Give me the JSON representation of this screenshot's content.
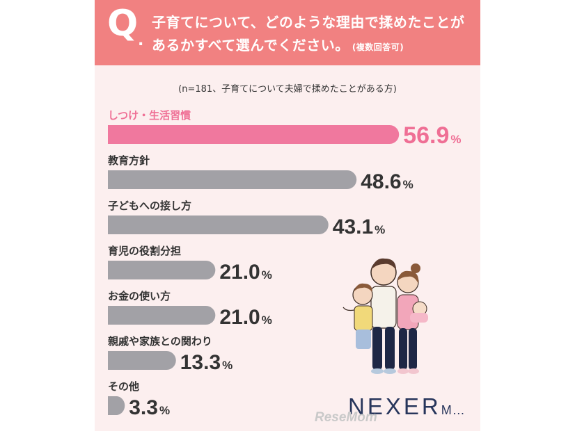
{
  "header": {
    "q_mark": "Q",
    "q_dot": ".",
    "line1": "子育てについて、どのような理由で揉めたことが",
    "line2": "あるかすべて選んでください。",
    "note": "(複数回答可)"
  },
  "subtitle": "(n=181、子育てについて夫婦で揉めたことがある方)",
  "chart_data": {
    "type": "bar",
    "orientation": "horizontal",
    "title": "子育てについて、どのような理由で揉めたことがあるかすべて選んでください。(複数回答可)",
    "subtitle": "(n=181、子育てについて夫婦で揉めたことがある方)",
    "categories": [
      "しつけ・生活習慣",
      "教育方針",
      "子どもへの接し方",
      "育児の役割分担",
      "お金の使い方",
      "親戚や家族との関わり",
      "その他"
    ],
    "values": [
      56.9,
      48.6,
      43.1,
      21.0,
      21.0,
      13.3,
      3.3
    ],
    "labels": [
      "56.9",
      "48.6",
      "43.1",
      "21.0",
      "21.0",
      "13.3",
      "3.3"
    ],
    "unit": "%",
    "highlight_index": 0,
    "xlim": [
      0,
      60
    ],
    "grid": false,
    "legend": "none",
    "colors": {
      "highlight": "#f0789e",
      "default": "#a2a1a6",
      "highlight_text": "#ef6f95",
      "text": "#333333"
    }
  },
  "colors": {
    "header_bg": "#f18181",
    "card_bg": "#fcefef"
  },
  "logo": {
    "text": "NEXER",
    "suffix": "M…"
  },
  "watermark": "ReseMom"
}
